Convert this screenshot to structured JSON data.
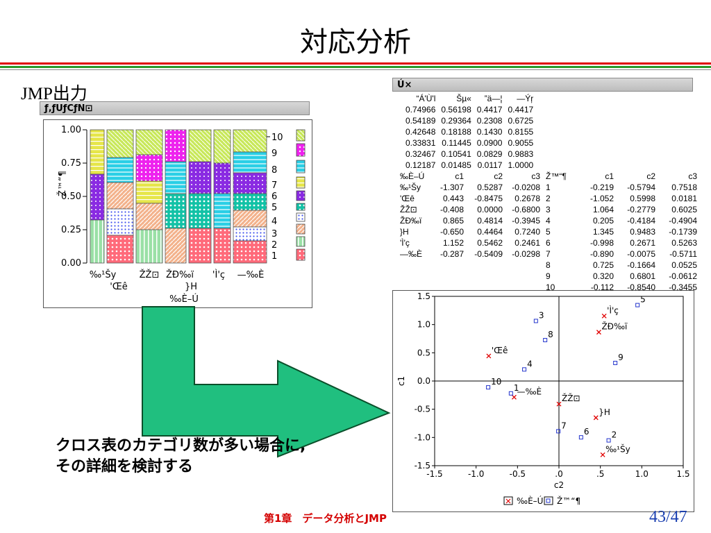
{
  "slide": {
    "title": "対応分析",
    "subtitle": "JMP出力",
    "note_lines": [
      "クロス表のカテゴリ数が多い場合に,",
      "その詳細を検討する"
    ],
    "footer": "第1章　データ分析とJMP",
    "page": "43/47",
    "colors": {
      "red": "#e00000",
      "green": "#2a9a2a",
      "arrow": "#20bf7f",
      "page": "#1a3fb0"
    }
  },
  "mosaic": {
    "header": "ƒ‚ƒUƒCƒN⊡",
    "y_axis_label": "Ž™“¶",
    "y_ticks": [
      "1.00",
      "0.75",
      "0.50",
      "0.25",
      "0.00"
    ],
    "x_labels_row1": [
      "‰¹Šy",
      "ŽŽ⊡",
      "ŽÐ‰ï",
      "'Ì'ç",
      "—‰È"
    ],
    "x_labels_row2": [
      "'Œê",
      "",
      "",
      "}H",
      ""
    ],
    "x_axis_label": "‰È–Ú",
    "legend_labels": [
      "10",
      "9",
      "8",
      "7",
      "6",
      "5",
      "4",
      "3",
      "2",
      "1"
    ]
  },
  "tables": {
    "header": "Ú×",
    "singular": {
      "columns": [
        "“Á'Ù'l",
        "Šµ«",
        "”ä—¦",
        "—Ýŗ"
      ],
      "rows": [
        [
          "0.74966",
          "0.56198",
          "0.4417",
          "0.4417"
        ],
        [
          "0.54189",
          "0.29364",
          "0.2308",
          "0.6725"
        ],
        [
          "0.42648",
          "0.18188",
          "0.1430",
          "0.8155"
        ],
        [
          "0.33831",
          "0.11445",
          "0.0900",
          "0.9055"
        ],
        [
          "0.32467",
          "0.10541",
          "0.0829",
          "0.9883"
        ],
        [
          "0.12187",
          "0.01485",
          "0.0117",
          "1.0000"
        ]
      ]
    },
    "coords": {
      "columns": [
        "‰È–Ú",
        "c1",
        "c2",
        "c3",
        "Ž™“¶",
        "c1",
        "c2",
        "c3"
      ],
      "rows": [
        [
          "‰¹Šy",
          "-1.307",
          "0.5287",
          "-0.0208",
          "1",
          "-0.219",
          "-0.5794",
          "0.7518"
        ],
        [
          "'Œê",
          "0.443",
          "-0.8475",
          "0.2678",
          "2",
          "-1.052",
          "0.5998",
          "0.0181"
        ],
        [
          "ŽŽ⊡",
          "-0.408",
          "0.0000",
          "-0.6800",
          "3",
          "1.064",
          "-0.2779",
          "0.6025"
        ],
        [
          "ŽÐ‰ï",
          "0.865",
          "0.4814",
          "-0.3945",
          "4",
          "0.205",
          "-0.4184",
          "-0.4904"
        ],
        [
          "}H",
          "-0.650",
          "0.4464",
          "0.7240",
          "5",
          "1.345",
          "0.9483",
          "-0.1739"
        ],
        [
          "'Ì'ç",
          "1.152",
          "0.5462",
          "0.2461",
          "6",
          "-0.998",
          "0.2671",
          "0.5263"
        ],
        [
          "—‰È",
          "-0.287",
          "-0.5409",
          "-0.0298",
          "7",
          "-0.890",
          "-0.0075",
          "-0.5711"
        ],
        [
          "",
          "",
          "",
          "",
          "8",
          "0.725",
          "-0.1664",
          "0.0525"
        ],
        [
          "",
          "",
          "",
          "",
          "9",
          "0.320",
          "0.6801",
          "-0.0612"
        ],
        [
          "",
          "",
          "",
          "",
          "10",
          "-0.112",
          "-0.8540",
          "-0.3455"
        ]
      ]
    }
  },
  "chart_data": {
    "type": "scatter",
    "xlabel": "c2",
    "ylabel": "c1",
    "xlim": [
      -1.5,
      1.5
    ],
    "ylim": [
      -1.5,
      1.5
    ],
    "x_ticks": [
      "-1.5",
      "-1.0",
      "-0.5",
      ".0",
      ".5",
      "1.0",
      "1.5"
    ],
    "y_ticks": [
      "1.5",
      "1.0",
      "0.5",
      "0.0",
      "-0.5",
      "-1.0",
      "-1.5"
    ],
    "reference_lines": [
      0,
      0
    ],
    "series": [
      {
        "marker": "x",
        "color": "#e00000",
        "points": [
          {
            "label": "‰¹Šy",
            "x": 0.5287,
            "y": -1.307
          },
          {
            "label": "'Œê",
            "x": -0.8475,
            "y": 0.443
          },
          {
            "label": "ŽŽ⊡",
            "x": 0.0,
            "y": -0.408
          },
          {
            "label": "ŽÐ‰ï",
            "x": 0.4814,
            "y": 0.865
          },
          {
            "label": "}H",
            "x": 0.4464,
            "y": -0.65
          },
          {
            "label": "'Ì'ç",
            "x": 0.5462,
            "y": 1.152
          },
          {
            "label": "—‰È",
            "x": -0.5409,
            "y": -0.287
          }
        ]
      },
      {
        "marker": "square",
        "color": "#2233cc",
        "points": [
          {
            "label": "1",
            "x": -0.5794,
            "y": -0.219
          },
          {
            "label": "2",
            "x": 0.5998,
            "y": -1.052
          },
          {
            "label": "3",
            "x": -0.2779,
            "y": 1.064
          },
          {
            "label": "4",
            "x": -0.4184,
            "y": 0.205
          },
          {
            "label": "5",
            "x": 0.9483,
            "y": 1.345
          },
          {
            "label": "6",
            "x": 0.2671,
            "y": -0.998
          },
          {
            "label": "7",
            "x": -0.0075,
            "y": -0.89
          },
          {
            "label": "8",
            "x": -0.1664,
            "y": 0.725
          },
          {
            "label": "9",
            "x": 0.6801,
            "y": 0.32
          },
          {
            "label": "10",
            "x": -0.854,
            "y": -0.112
          }
        ]
      }
    ],
    "legend": [
      "‰È–Ú",
      "Ž™“¶"
    ]
  }
}
